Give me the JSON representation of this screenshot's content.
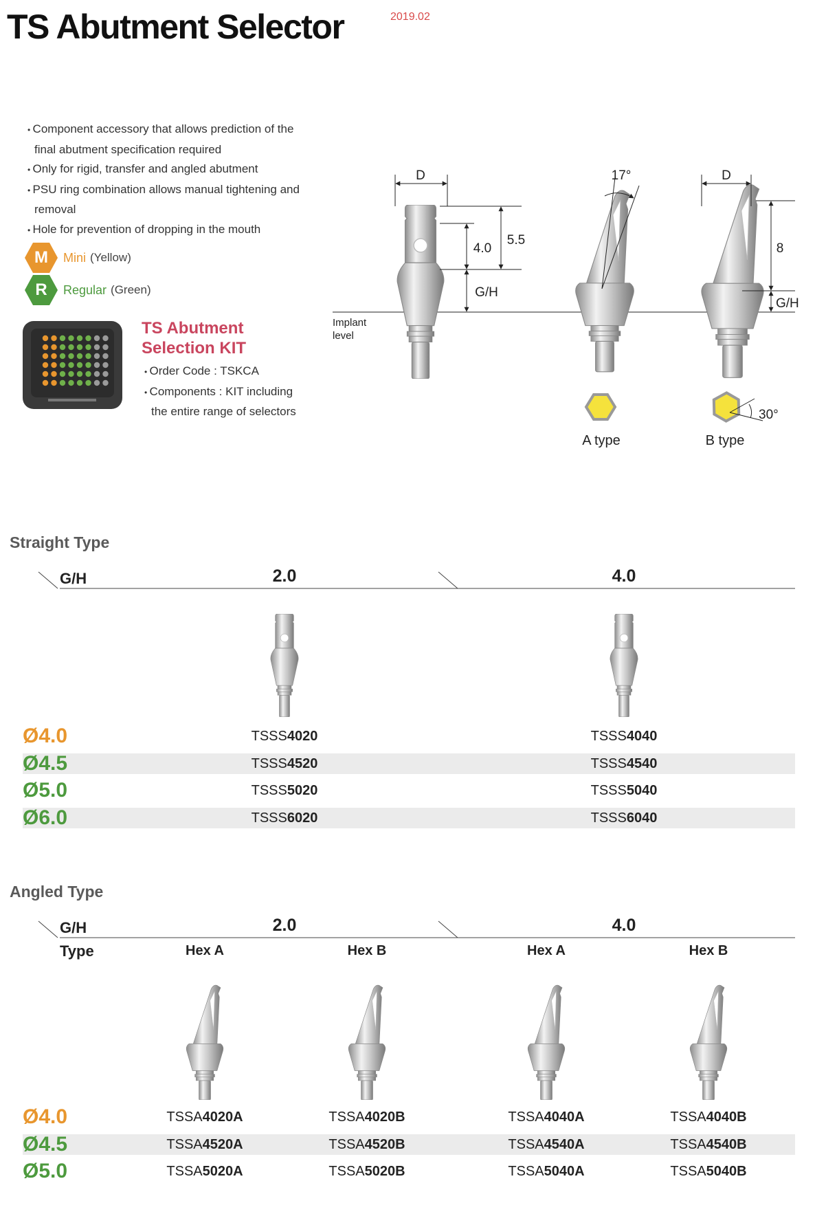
{
  "header": {
    "title": "TS Abutment Selector",
    "date": "2019.02"
  },
  "features": [
    "Component accessory that allows prediction of the final abutment specification required",
    "Only for rigid, transfer and angled abutment",
    "PSU ring combination allows manual tightening and removal",
    "Hole for prevention of dropping in the mouth"
  ],
  "sizes": [
    {
      "letter": "M",
      "name": "Mini",
      "color_name": "(Yellow)",
      "color": "#e8962e"
    },
    {
      "letter": "R",
      "name": "Regular",
      "color_name": "(Green)",
      "color": "#4d9a3e"
    }
  ],
  "kit": {
    "title": "TS Abutment Selection KIT",
    "items": [
      "Order Code : TSKCA",
      "Components : KIT including the entire range of selectors"
    ]
  },
  "diagram": {
    "implant_level": "Implant level",
    "straight": {
      "d": "D",
      "top": "4.0",
      "total": "5.5",
      "gh": "G/H"
    },
    "angled_a": {
      "angle": "17°",
      "label": "A type"
    },
    "angled_b": {
      "d": "D",
      "height": "8",
      "gh": "G/H",
      "angle": "30°",
      "label": "B type"
    }
  },
  "straight": {
    "title": "Straight Type",
    "gh": "G/H",
    "groups": [
      "2.0",
      "4.0"
    ],
    "rows": [
      {
        "diameter": "Ø4.0",
        "color": "#e8962e",
        "codes": [
          {
            "prefix": "TSSS",
            "number": "4020"
          },
          {
            "prefix": "TSSS",
            "number": "4040"
          }
        ]
      },
      {
        "diameter": "Ø4.5",
        "color": "#4d9a3e",
        "codes": [
          {
            "prefix": "TSSS",
            "number": "4520"
          },
          {
            "prefix": "TSSS",
            "number": "4540"
          }
        ]
      },
      {
        "diameter": "Ø5.0",
        "color": "#4d9a3e",
        "codes": [
          {
            "prefix": "TSSS",
            "number": "5020"
          },
          {
            "prefix": "TSSS",
            "number": "5040"
          }
        ]
      },
      {
        "diameter": "Ø6.0",
        "color": "#4d9a3e",
        "codes": [
          {
            "prefix": "TSSS",
            "number": "6020"
          },
          {
            "prefix": "TSSS",
            "number": "6040"
          }
        ]
      }
    ]
  },
  "angled": {
    "title": "Angled Type",
    "gh": "G/H",
    "type_label": "Type",
    "groups": [
      "2.0",
      "4.0"
    ],
    "subheaders": [
      "Hex A",
      "Hex B",
      "Hex A",
      "Hex B"
    ],
    "rows": [
      {
        "diameter": "Ø4.0",
        "color": "#e8962e",
        "codes": [
          {
            "prefix": "TSSA",
            "number": "4020A"
          },
          {
            "prefix": "TSSA",
            "number": "4020B"
          },
          {
            "prefix": "TSSA",
            "number": "4040A"
          },
          {
            "prefix": "TSSA",
            "number": "4040B"
          }
        ]
      },
      {
        "diameter": "Ø4.5",
        "color": "#4d9a3e",
        "codes": [
          {
            "prefix": "TSSA",
            "number": "4520A"
          },
          {
            "prefix": "TSSA",
            "number": "4520B"
          },
          {
            "prefix": "TSSA",
            "number": "4540A"
          },
          {
            "prefix": "TSSA",
            "number": "4540B"
          }
        ]
      },
      {
        "diameter": "Ø5.0",
        "color": "#4d9a3e",
        "codes": [
          {
            "prefix": "TSSA",
            "number": "5020A"
          },
          {
            "prefix": "TSSA",
            "number": "5020B"
          },
          {
            "prefix": "TSSA",
            "number": "5040A"
          },
          {
            "prefix": "TSSA",
            "number": "5040B"
          }
        ]
      }
    ]
  }
}
